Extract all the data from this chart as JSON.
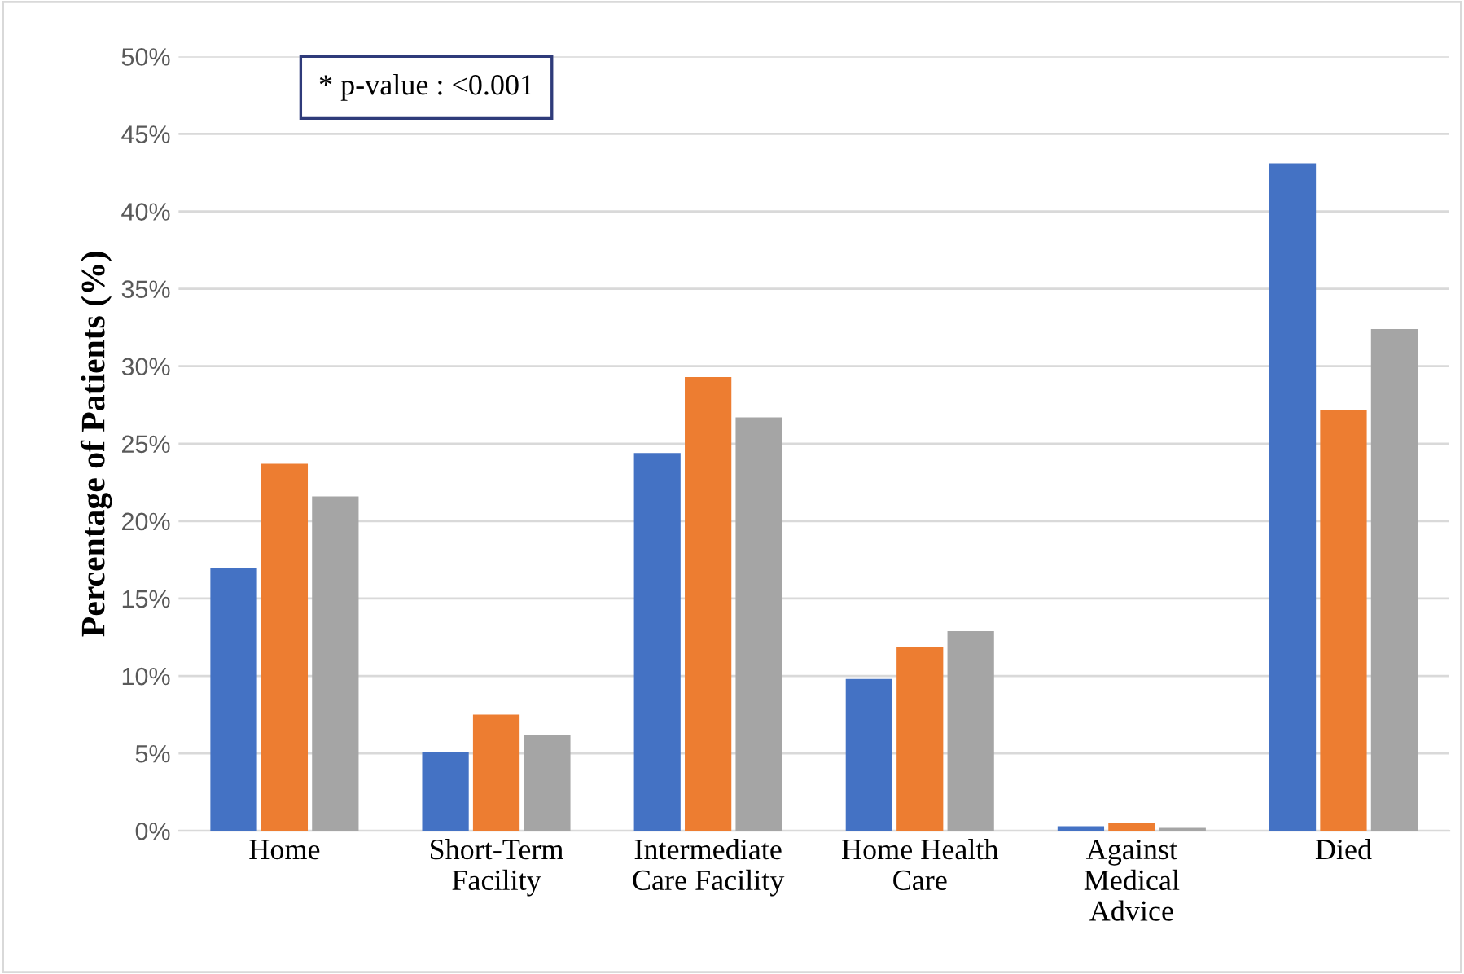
{
  "chart_data": {
    "type": "bar",
    "ylabel": "Percentage of Patients (%)",
    "categories": [
      "Home",
      "Short-Term\nFacility",
      "Intermediate\nCare Facility",
      "Home Health\nCare",
      "Against\nMedical\nAdvice",
      "Died"
    ],
    "series": [
      {
        "color": "#4472c4",
        "values": [
          17.0,
          5.1,
          24.4,
          9.8,
          0.3,
          43.1
        ]
      },
      {
        "color": "#ed7d31",
        "values": [
          23.7,
          7.5,
          29.3,
          11.9,
          0.5,
          27.2
        ]
      },
      {
        "color": "#a5a5a5",
        "values": [
          21.6,
          6.2,
          26.7,
          12.9,
          0.2,
          32.4
        ]
      }
    ],
    "ylim": [
      0,
      50
    ],
    "yticks": [
      {
        "value": 0,
        "label": "0%"
      },
      {
        "value": 5,
        "label": "5%"
      },
      {
        "value": 10,
        "label": "10%"
      },
      {
        "value": 15,
        "label": "15%"
      },
      {
        "value": 20,
        "label": "20%"
      },
      {
        "value": 25,
        "label": "25%"
      },
      {
        "value": 30,
        "label": "30%"
      },
      {
        "value": 35,
        "label": "35%"
      },
      {
        "value": 40,
        "label": "40%"
      },
      {
        "value": 45,
        "label": "45%"
      },
      {
        "value": 50,
        "label": "50%"
      }
    ],
    "grid": "y",
    "legend": false,
    "annotations": [
      "* p-value : <0.001"
    ]
  }
}
